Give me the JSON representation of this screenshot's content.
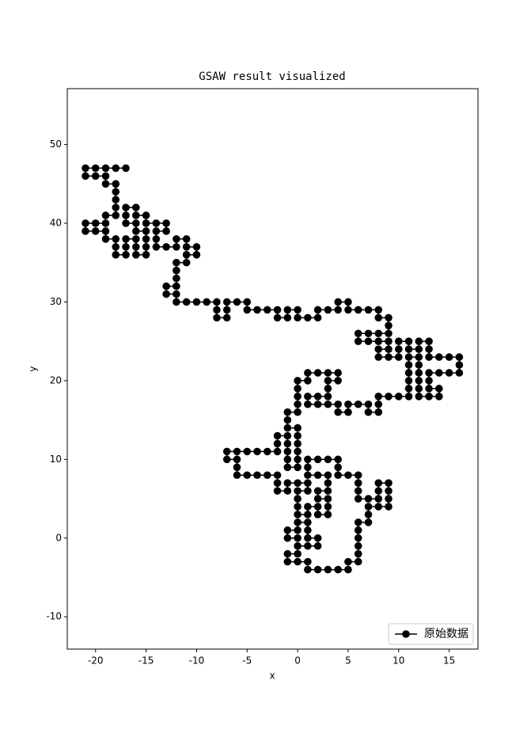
{
  "chart_data": {
    "type": "line",
    "title": "GSAW result visualized",
    "xlabel": "x",
    "ylabel": "y",
    "xlim": [
      -22.8,
      17.85
    ],
    "ylim": [
      -14.1,
      57.1
    ],
    "xticks": [
      -20,
      -15,
      -10,
      -5,
      0,
      5,
      10,
      15
    ],
    "yticks": [
      -10,
      0,
      10,
      20,
      30,
      40,
      50
    ],
    "grid": false,
    "legend": "lower right",
    "series": [
      {
        "name": "原始数据",
        "color": "#000000",
        "x": [
          0,
          -1,
          -1,
          0,
          0,
          1,
          1,
          1,
          2,
          2,
          1,
          0,
          0,
          -1,
          -1,
          0,
          1,
          1,
          2,
          3,
          4,
          5,
          5,
          6,
          6,
          6,
          6,
          6,
          6,
          7,
          7,
          7,
          8,
          9,
          9,
          9,
          9,
          8,
          8,
          8,
          7,
          6,
          6,
          6,
          6,
          5,
          4,
          4,
          4,
          3,
          2,
          1,
          1,
          1,
          2,
          3,
          3,
          3,
          2,
          2,
          3,
          3,
          3,
          2,
          2,
          1,
          1,
          0,
          0,
          0,
          0,
          1,
          1,
          0,
          -1,
          -1,
          -2,
          -2,
          -2,
          -3,
          -4,
          -5,
          -6,
          -6,
          -6,
          -7,
          -7,
          -6,
          -5,
          -4,
          -3,
          -2,
          -2,
          -2,
          -1,
          -1,
          -1,
          -1,
          -1,
          0,
          0,
          0,
          0,
          0,
          0,
          -1,
          -1,
          -1,
          0,
          0,
          0,
          0,
          0,
          1,
          1,
          2,
          3,
          4,
          4,
          3,
          3,
          3,
          2,
          1,
          1,
          2,
          3,
          4,
          4,
          5,
          5,
          6,
          7,
          7,
          8,
          8,
          8,
          9,
          10,
          11,
          11,
          11,
          11,
          11,
          11,
          12,
          12,
          12,
          12,
          12,
          12,
          13,
          14,
          14,
          13,
          13,
          13,
          14,
          15,
          16,
          16,
          16,
          15,
          14,
          13,
          13,
          13,
          12,
          12,
          11,
          11,
          10,
          10,
          10,
          9,
          8,
          8,
          9,
          9,
          8,
          7,
          6,
          6,
          7,
          8,
          9,
          9,
          9,
          8,
          8,
          7,
          6,
          5,
          5,
          4,
          4,
          3,
          2,
          2,
          1,
          0,
          0,
          -1,
          -1,
          -2,
          -2,
          -3,
          -4,
          -5,
          -5,
          -6,
          -7,
          -7,
          -7,
          -8,
          -8,
          -8,
          -9,
          -10,
          -11,
          -12,
          -12,
          -13,
          -13,
          -12,
          -12,
          -12,
          -12,
          -11,
          -11,
          -10,
          -10,
          -11,
          -11,
          -12,
          -12,
          -13,
          -14,
          -14,
          -14,
          -13,
          -13,
          -14,
          -15,
          -15,
          -16,
          -16,
          -17,
          -17,
          -17,
          -16,
          -16,
          -15,
          -15,
          -15,
          -15,
          -16,
          -16,
          -16,
          -17,
          -17,
          -17,
          -18,
          -18,
          -18,
          -19,
          -19,
          -20,
          -21,
          -21,
          -20,
          -19,
          -19,
          -18,
          -18,
          -18,
          -18,
          -18,
          -19,
          -19,
          -20,
          -21,
          -21,
          -20,
          -19,
          -18,
          -17
        ],
        "values": [
          0,
          0,
          1,
          1,
          2,
          2,
          1,
          0,
          0,
          -1,
          -1,
          -1,
          -2,
          -2,
          -3,
          -3,
          -3,
          -4,
          -4,
          -4,
          -4,
          -4,
          -3,
          -3,
          -2,
          -1,
          0,
          1,
          2,
          2,
          3,
          4,
          4,
          4,
          5,
          6,
          7,
          7,
          6,
          5,
          5,
          5,
          6,
          7,
          8,
          8,
          8,
          9,
          10,
          10,
          10,
          10,
          9,
          8,
          8,
          8,
          7,
          6,
          6,
          5,
          5,
          4,
          3,
          3,
          4,
          4,
          3,
          3,
          4,
          5,
          6,
          6,
          7,
          7,
          7,
          6,
          6,
          7,
          8,
          8,
          8,
          8,
          8,
          9,
          10,
          10,
          11,
          11,
          11,
          11,
          11,
          11,
          12,
          13,
          13,
          12,
          11,
          10,
          9,
          9,
          10,
          11,
          12,
          13,
          14,
          14,
          15,
          16,
          16,
          17,
          18,
          19,
          20,
          20,
          21,
          21,
          21,
          21,
          20,
          20,
          19,
          18,
          18,
          18,
          17,
          17,
          17,
          17,
          16,
          16,
          17,
          17,
          17,
          16,
          16,
          17,
          18,
          18,
          18,
          18,
          19,
          20,
          21,
          22,
          23,
          23,
          22,
          21,
          20,
          19,
          18,
          18,
          18,
          19,
          19,
          20,
          21,
          21,
          21,
          21,
          22,
          23,
          23,
          23,
          23,
          24,
          25,
          25,
          24,
          24,
          25,
          25,
          24,
          23,
          23,
          23,
          24,
          24,
          25,
          25,
          25,
          25,
          26,
          26,
          26,
          26,
          27,
          28,
          28,
          29,
          29,
          29,
          29,
          30,
          30,
          29,
          29,
          29,
          28,
          28,
          28,
          29,
          29,
          28,
          28,
          29,
          29,
          29,
          29,
          30,
          30,
          30,
          29,
          28,
          28,
          29,
          30,
          30,
          30,
          30,
          30,
          31,
          31,
          32,
          32,
          33,
          34,
          35,
          35,
          36,
          36,
          37,
          37,
          38,
          38,
          37,
          37,
          37,
          38,
          39,
          39,
          40,
          40,
          40,
          41,
          41,
          42,
          42,
          41,
          40,
          40,
          39,
          39,
          38,
          37,
          36,
          36,
          37,
          38,
          38,
          37,
          36,
          36,
          37,
          38,
          38,
          39,
          39,
          39,
          40,
          40,
          40,
          41,
          41,
          42,
          43,
          44,
          45,
          45,
          46,
          46,
          46,
          47,
          47,
          47,
          47,
          47
        ]
      }
    ]
  }
}
